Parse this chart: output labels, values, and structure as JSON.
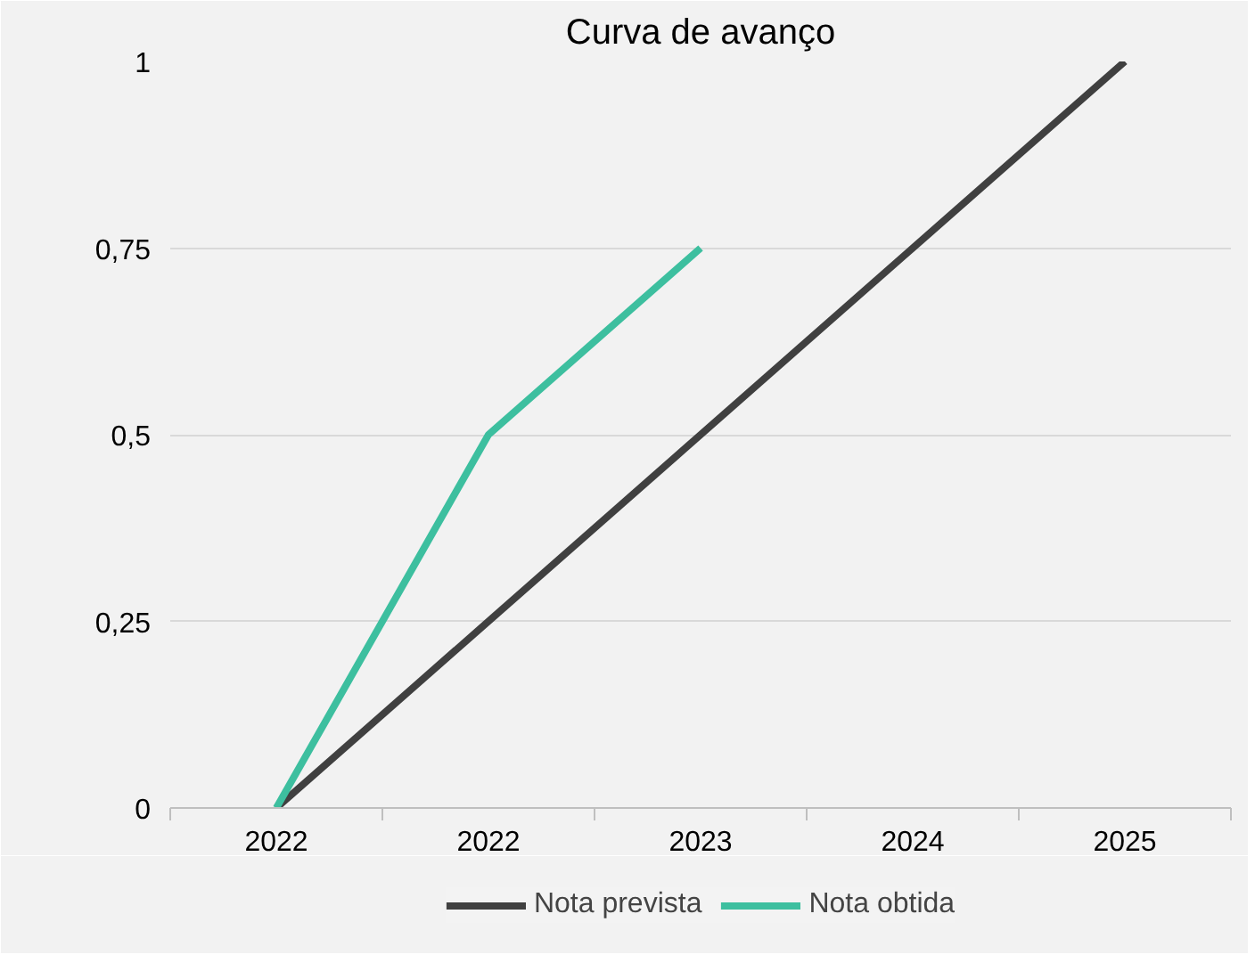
{
  "chart_data": {
    "type": "line",
    "title": "Curva de avanço",
    "categories": [
      "2022",
      "2022",
      "2023",
      "2024",
      "2025"
    ],
    "series": [
      {
        "name": "Nota prevista",
        "color": "#404040",
        "values": [
          0,
          0.25,
          0.5,
          0.75,
          1
        ]
      },
      {
        "name": "Nota obtida",
        "color": "#3dbf9f",
        "values": [
          0,
          0.5,
          0.75,
          null,
          null
        ]
      }
    ],
    "ylim": [
      0,
      1
    ],
    "yticks": [
      0,
      {
        "value": 0.25,
        "label": "0,25"
      },
      {
        "value": 0.5,
        "label": "0,5"
      },
      {
        "value": 0.75,
        "label": "0,75"
      },
      1
    ],
    "grid": "y",
    "legend": "bottom",
    "marker": "none",
    "line_style": "solid"
  }
}
